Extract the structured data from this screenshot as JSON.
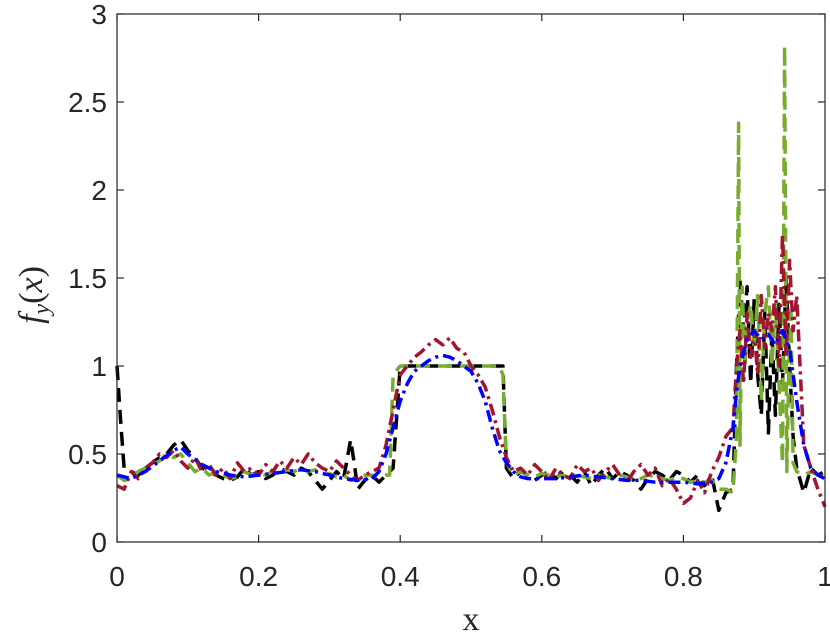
{
  "chart_data": {
    "type": "line",
    "xlabel": "x",
    "ylabel": "f_y(x)",
    "ylabel_parts": {
      "f": "f",
      "sub": "y",
      "open": "(",
      "x": "x",
      "close": ")"
    },
    "xlim": [
      0,
      1
    ],
    "ylim": [
      0,
      3
    ],
    "x_ticks": [
      0,
      0.2,
      0.4,
      0.6,
      0.8,
      1
    ],
    "x_tick_labels": [
      "0",
      "0.2",
      "0.4",
      "0.6",
      "0.8",
      "1"
    ],
    "y_ticks": [
      0,
      0.5,
      1,
      1.5,
      2,
      2.5,
      3
    ],
    "y_tick_labels": [
      "0",
      "0.5",
      "1",
      "1.5",
      "2",
      "2.5",
      "3"
    ],
    "grid": false,
    "series": [
      {
        "color": "#000000",
        "style": "dashed",
        "x": [
          0.0,
          0.005,
          0.01,
          0.02,
          0.03,
          0.04,
          0.05,
          0.06,
          0.07,
          0.08,
          0.09,
          0.1,
          0.11,
          0.12,
          0.13,
          0.14,
          0.15,
          0.16,
          0.17,
          0.18,
          0.19,
          0.2,
          0.21,
          0.22,
          0.23,
          0.24,
          0.25,
          0.26,
          0.27,
          0.28,
          0.29,
          0.3,
          0.31,
          0.32,
          0.33,
          0.335,
          0.34,
          0.35,
          0.36,
          0.37,
          0.38,
          0.39,
          0.4,
          0.42,
          0.44,
          0.46,
          0.48,
          0.5,
          0.52,
          0.54,
          0.545,
          0.55,
          0.56,
          0.57,
          0.58,
          0.59,
          0.6,
          0.61,
          0.62,
          0.63,
          0.64,
          0.65,
          0.66,
          0.67,
          0.68,
          0.69,
          0.7,
          0.71,
          0.72,
          0.73,
          0.74,
          0.75,
          0.76,
          0.77,
          0.78,
          0.79,
          0.8,
          0.81,
          0.82,
          0.83,
          0.84,
          0.85,
          0.86,
          0.87,
          0.875,
          0.88,
          0.885,
          0.89,
          0.895,
          0.9,
          0.905,
          0.91,
          0.915,
          0.92,
          0.925,
          0.93,
          0.935,
          0.94,
          0.945,
          0.95,
          0.955,
          0.96,
          0.97,
          0.98,
          0.99,
          1.0
        ],
        "y": [
          1.0,
          0.7,
          0.42,
          0.4,
          0.38,
          0.42,
          0.45,
          0.48,
          0.5,
          0.55,
          0.58,
          0.52,
          0.48,
          0.42,
          0.4,
          0.38,
          0.36,
          0.35,
          0.37,
          0.42,
          0.38,
          0.4,
          0.36,
          0.38,
          0.42,
          0.4,
          0.38,
          0.42,
          0.4,
          0.35,
          0.3,
          0.35,
          0.4,
          0.36,
          0.58,
          0.45,
          0.3,
          0.35,
          0.38,
          0.34,
          0.38,
          0.42,
          1.0,
          1.0,
          1.0,
          1.0,
          1.0,
          1.0,
          1.0,
          1.0,
          1.0,
          0.42,
          0.36,
          0.4,
          0.38,
          0.35,
          0.38,
          0.4,
          0.36,
          0.4,
          0.38,
          0.34,
          0.4,
          0.32,
          0.38,
          0.42,
          0.36,
          0.4,
          0.38,
          0.35,
          0.3,
          0.36,
          0.4,
          0.38,
          0.35,
          0.4,
          0.38,
          0.34,
          0.38,
          0.32,
          0.38,
          0.18,
          0.28,
          0.3,
          1.0,
          1.48,
          1.2,
          1.45,
          0.9,
          1.38,
          0.95,
          0.72,
          1.3,
          0.62,
          1.2,
          0.72,
          1.35,
          0.9,
          1.5,
          1.0,
          0.6,
          0.42,
          0.28,
          0.42,
          0.38,
          0.4
        ]
      },
      {
        "color": "#77AC30",
        "style": "dashed",
        "x": [
          0.0,
          0.01,
          0.02,
          0.03,
          0.04,
          0.05,
          0.06,
          0.07,
          0.08,
          0.09,
          0.1,
          0.11,
          0.12,
          0.13,
          0.14,
          0.15,
          0.16,
          0.17,
          0.18,
          0.19,
          0.2,
          0.21,
          0.22,
          0.23,
          0.24,
          0.25,
          0.26,
          0.27,
          0.28,
          0.29,
          0.3,
          0.31,
          0.32,
          0.33,
          0.34,
          0.35,
          0.36,
          0.37,
          0.38,
          0.385,
          0.39,
          0.4,
          0.42,
          0.44,
          0.46,
          0.48,
          0.5,
          0.52,
          0.53,
          0.54,
          0.545,
          0.55,
          0.56,
          0.57,
          0.58,
          0.59,
          0.6,
          0.61,
          0.62,
          0.63,
          0.64,
          0.65,
          0.66,
          0.67,
          0.68,
          0.69,
          0.7,
          0.71,
          0.72,
          0.73,
          0.74,
          0.75,
          0.76,
          0.77,
          0.78,
          0.79,
          0.8,
          0.81,
          0.82,
          0.83,
          0.84,
          0.85,
          0.86,
          0.87,
          0.875,
          0.878,
          0.88,
          0.883,
          0.887,
          0.89,
          0.895,
          0.9,
          0.905,
          0.91,
          0.915,
          0.92,
          0.925,
          0.93,
          0.935,
          0.94,
          0.943,
          0.946,
          0.949,
          0.952,
          0.955,
          0.96,
          0.97,
          0.98,
          0.99,
          1.0
        ],
        "y": [
          0.38,
          0.35,
          0.36,
          0.4,
          0.42,
          0.44,
          0.46,
          0.5,
          0.48,
          0.5,
          0.45,
          0.4,
          0.42,
          0.38,
          0.4,
          0.38,
          0.36,
          0.37,
          0.4,
          0.38,
          0.39,
          0.38,
          0.4,
          0.39,
          0.41,
          0.4,
          0.42,
          0.4,
          0.41,
          0.38,
          0.39,
          0.37,
          0.38,
          0.35,
          0.37,
          0.38,
          0.38,
          0.37,
          0.38,
          0.38,
          0.95,
          1.0,
          1.0,
          1.0,
          1.0,
          1.0,
          1.0,
          1.0,
          1.0,
          1.0,
          0.95,
          0.45,
          0.38,
          0.4,
          0.38,
          0.37,
          0.39,
          0.38,
          0.37,
          0.38,
          0.36,
          0.38,
          0.37,
          0.36,
          0.38,
          0.37,
          0.36,
          0.38,
          0.37,
          0.35,
          0.36,
          0.38,
          0.37,
          0.36,
          0.35,
          0.37,
          0.36,
          0.34,
          0.35,
          0.34,
          0.35,
          0.3,
          0.3,
          0.28,
          0.6,
          2.38,
          0.55,
          1.45,
          1.0,
          1.25,
          1.35,
          1.1,
          1.4,
          0.8,
          1.3,
          1.45,
          1.0,
          1.35,
          0.9,
          0.45,
          2.82,
          0.4,
          1.0,
          1.3,
          0.45,
          0.4,
          0.38,
          0.4,
          0.38,
          0.38
        ]
      },
      {
        "color": "#A2142F",
        "style": "dash-dot",
        "x": [
          0.0,
          0.01,
          0.02,
          0.03,
          0.04,
          0.05,
          0.06,
          0.07,
          0.08,
          0.09,
          0.1,
          0.11,
          0.12,
          0.13,
          0.14,
          0.15,
          0.16,
          0.17,
          0.18,
          0.19,
          0.2,
          0.21,
          0.22,
          0.23,
          0.24,
          0.25,
          0.26,
          0.27,
          0.28,
          0.29,
          0.3,
          0.31,
          0.32,
          0.33,
          0.34,
          0.35,
          0.36,
          0.37,
          0.38,
          0.39,
          0.4,
          0.41,
          0.42,
          0.43,
          0.44,
          0.45,
          0.46,
          0.47,
          0.48,
          0.49,
          0.5,
          0.51,
          0.52,
          0.53,
          0.54,
          0.55,
          0.56,
          0.57,
          0.58,
          0.59,
          0.6,
          0.61,
          0.62,
          0.63,
          0.64,
          0.65,
          0.66,
          0.67,
          0.68,
          0.69,
          0.7,
          0.71,
          0.72,
          0.73,
          0.74,
          0.75,
          0.76,
          0.77,
          0.78,
          0.79,
          0.8,
          0.81,
          0.82,
          0.83,
          0.84,
          0.85,
          0.86,
          0.87,
          0.875,
          0.88,
          0.885,
          0.89,
          0.895,
          0.9,
          0.905,
          0.91,
          0.915,
          0.92,
          0.925,
          0.93,
          0.935,
          0.94,
          0.945,
          0.95,
          0.955,
          0.96,
          0.97,
          0.98,
          0.99,
          1.0
        ],
        "y": [
          0.32,
          0.3,
          0.4,
          0.36,
          0.42,
          0.45,
          0.5,
          0.48,
          0.52,
          0.46,
          0.42,
          0.48,
          0.4,
          0.44,
          0.38,
          0.42,
          0.36,
          0.45,
          0.4,
          0.42,
          0.38,
          0.44,
          0.4,
          0.46,
          0.42,
          0.48,
          0.44,
          0.5,
          0.45,
          0.42,
          0.4,
          0.46,
          0.42,
          0.38,
          0.35,
          0.38,
          0.4,
          0.42,
          0.55,
          0.75,
          0.95,
          1.0,
          1.05,
          1.08,
          1.12,
          1.15,
          1.12,
          1.16,
          1.1,
          1.08,
          1.0,
          0.95,
          0.88,
          0.75,
          0.6,
          0.48,
          0.4,
          0.42,
          0.38,
          0.44,
          0.4,
          0.35,
          0.42,
          0.38,
          0.36,
          0.44,
          0.4,
          0.42,
          0.35,
          0.4,
          0.44,
          0.38,
          0.34,
          0.4,
          0.44,
          0.38,
          0.42,
          0.32,
          0.36,
          0.3,
          0.22,
          0.25,
          0.35,
          0.28,
          0.4,
          0.48,
          0.6,
          0.65,
          1.0,
          1.2,
          0.9,
          1.3,
          1.05,
          1.2,
          0.95,
          1.4,
          1.1,
          1.3,
          1.2,
          1.45,
          1.0,
          1.75,
          1.05,
          1.6,
          1.2,
          1.4,
          0.55,
          0.42,
          0.3,
          0.2
        ]
      },
      {
        "color": "#0000FF",
        "style": "dash-dot",
        "x": [
          0.0,
          0.02,
          0.04,
          0.06,
          0.08,
          0.09,
          0.1,
          0.12,
          0.14,
          0.16,
          0.18,
          0.2,
          0.22,
          0.24,
          0.26,
          0.28,
          0.3,
          0.32,
          0.34,
          0.36,
          0.37,
          0.38,
          0.39,
          0.4,
          0.41,
          0.42,
          0.43,
          0.44,
          0.45,
          0.46,
          0.47,
          0.48,
          0.49,
          0.5,
          0.51,
          0.52,
          0.53,
          0.54,
          0.55,
          0.56,
          0.57,
          0.58,
          0.6,
          0.62,
          0.64,
          0.66,
          0.68,
          0.7,
          0.72,
          0.74,
          0.76,
          0.78,
          0.8,
          0.82,
          0.84,
          0.85,
          0.86,
          0.87,
          0.875,
          0.88,
          0.89,
          0.9,
          0.91,
          0.92,
          0.93,
          0.94,
          0.95,
          0.96,
          0.97,
          0.98,
          0.99,
          1.0
        ],
        "y": [
          0.38,
          0.36,
          0.4,
          0.46,
          0.52,
          0.54,
          0.5,
          0.44,
          0.4,
          0.38,
          0.37,
          0.38,
          0.39,
          0.4,
          0.41,
          0.4,
          0.38,
          0.36,
          0.35,
          0.36,
          0.4,
          0.5,
          0.65,
          0.8,
          0.9,
          0.97,
          1.0,
          1.03,
          1.05,
          1.06,
          1.05,
          1.03,
          1.0,
          0.97,
          0.9,
          0.8,
          0.65,
          0.52,
          0.45,
          0.4,
          0.37,
          0.36,
          0.36,
          0.36,
          0.37,
          0.38,
          0.37,
          0.36,
          0.35,
          0.35,
          0.34,
          0.34,
          0.34,
          0.33,
          0.34,
          0.36,
          0.45,
          0.65,
          0.85,
          1.0,
          1.15,
          1.2,
          1.15,
          1.18,
          1.12,
          1.2,
          1.1,
          0.8,
          0.55,
          0.42,
          0.38,
          0.36
        ]
      }
    ]
  }
}
